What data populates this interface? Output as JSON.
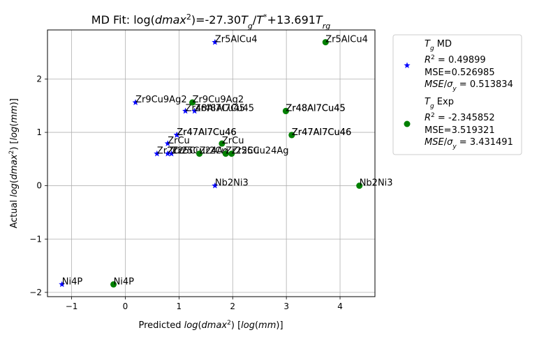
{
  "chart_data": {
    "type": "scatter",
    "title": "MD Fit: log(dmax²)=-27.30Tg/T*+13.691Trg",
    "xlabel": "Predicted log(dmax²) [log(mm)]",
    "ylabel": "Actual log(dmax²) [log(mm)]",
    "xlim": [
      -1.45,
      4.65
    ],
    "ylim": [
      -2.08,
      2.92
    ],
    "xticks": [
      -1,
      0,
      1,
      2,
      3,
      4
    ],
    "yticks": [
      -2,
      -1,
      0,
      1,
      2
    ],
    "grid": true,
    "legend_position": "outside-right",
    "series": [
      {
        "name": "Tg MD",
        "marker": "star",
        "color": "#0000ff",
        "stats": [
          "R² = 0.49899",
          "MSE=0.526985",
          "MSE/σy = 0.513834"
        ],
        "points": [
          {
            "label": "Zr5AlCu4",
            "x": 1.67,
            "y": 2.69
          },
          {
            "label": "Zr9Cu9Ag2",
            "x": 0.19,
            "y": 1.56
          },
          {
            "label": "Zr48Al7Cu45",
            "x": 1.12,
            "y": 1.4
          },
          {
            "label": "Zr48Al7Cu45",
            "x": 1.29,
            "y": 1.4
          },
          {
            "label": "Zr47Al7Cu46",
            "x": 0.96,
            "y": 0.95
          },
          {
            "label": "Zr47Al7Cu46",
            "x": 0.96,
            "y": 0.95
          },
          {
            "label": "ZrCu",
            "x": 0.79,
            "y": 0.79
          },
          {
            "label": "Zr2Cu",
            "x": 0.59,
            "y": 0.6
          },
          {
            "label": "Zr25Cu",
            "x": 0.79,
            "y": 0.6
          },
          {
            "label": "Zr25Cu24Ag",
            "x": 0.86,
            "y": 0.6
          },
          {
            "label": "Nb2Ni3",
            "x": 1.67,
            "y": 0.0
          },
          {
            "label": "Ni4P",
            "x": -1.18,
            "y": -1.85
          }
        ]
      },
      {
        "name": "Tg Exp",
        "marker": "circle",
        "color": "#008000",
        "stats": [
          "R² = -2.345852",
          "MSE=3.519321",
          "MSE/σy = 3.431491"
        ],
        "points": [
          {
            "label": "Zr5AlCu4",
            "x": 3.73,
            "y": 2.69
          },
          {
            "label": "Zr9Cu9Ag2",
            "x": 1.25,
            "y": 1.56
          },
          {
            "label": "Zr48Al7Cu45",
            "x": 2.99,
            "y": 1.4
          },
          {
            "label": "Zr48Al7Cu45",
            "x": 2.99,
            "y": 1.4
          },
          {
            "label": "Zr47Al7Cu46",
            "x": 3.1,
            "y": 0.95
          },
          {
            "label": "Zr47Al7Cu46",
            "x": 3.1,
            "y": 0.95
          },
          {
            "label": "ZrCu",
            "x": 1.8,
            "y": 0.79
          },
          {
            "label": "Zr2Cu",
            "x": 1.38,
            "y": 0.6
          },
          {
            "label": "Zr25Cu",
            "x": 1.87,
            "y": 0.6
          },
          {
            "label": "Zr25Cu24Ag",
            "x": 1.98,
            "y": 0.6
          },
          {
            "label": "Nb2Ni3",
            "x": 4.36,
            "y": 0.0
          },
          {
            "label": "Ni4P",
            "x": -0.22,
            "y": -1.85
          }
        ]
      }
    ]
  }
}
